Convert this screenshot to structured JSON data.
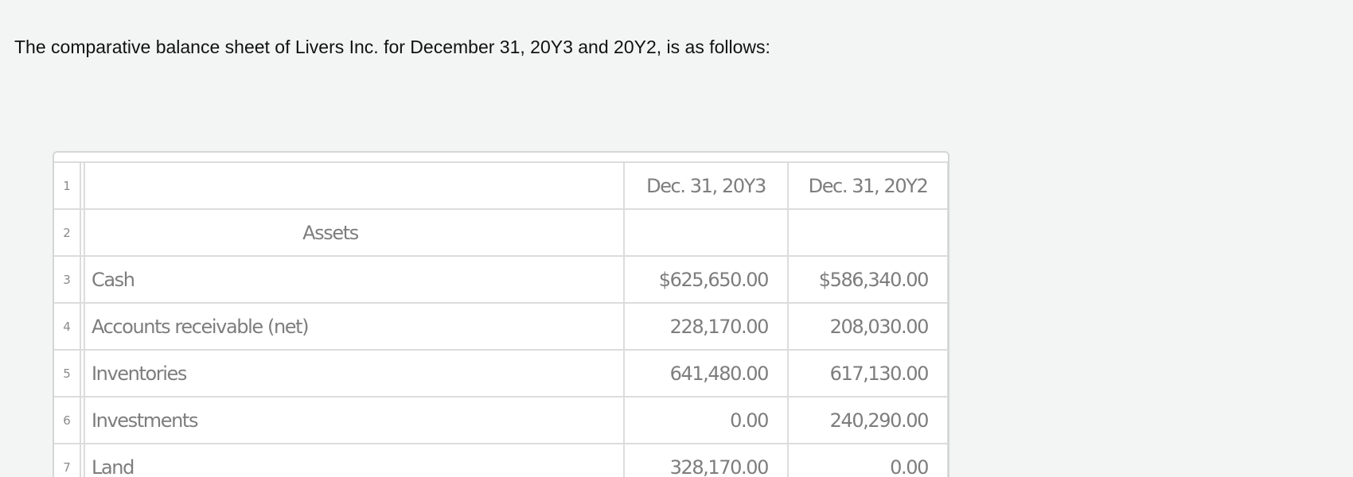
{
  "intro_text": "The comparative balance sheet of Livers Inc. for December 31, 20Y3 and 20Y2, is as follows:",
  "table": {
    "rows": [
      {
        "num": "1",
        "label": "",
        "c1": "Dec. 31, 20Y3",
        "c2": "Dec. 31, 20Y2"
      },
      {
        "num": "2",
        "label": "Assets",
        "c1": "",
        "c2": ""
      },
      {
        "num": "3",
        "label": "Cash",
        "c1": "$625,650.00",
        "c2": "$586,340.00"
      },
      {
        "num": "4",
        "label": "Accounts receivable (net)",
        "c1": "228,170.00",
        "c2": "208,030.00"
      },
      {
        "num": "5",
        "label": "Inventories",
        "c1": "641,480.00",
        "c2": "617,130.00"
      },
      {
        "num": "6",
        "label": "Investments",
        "c1": "0.00",
        "c2": "240,290.00"
      },
      {
        "num": "7",
        "label": "Land",
        "c1": "328,170.00",
        "c2": "0.00"
      }
    ]
  }
}
